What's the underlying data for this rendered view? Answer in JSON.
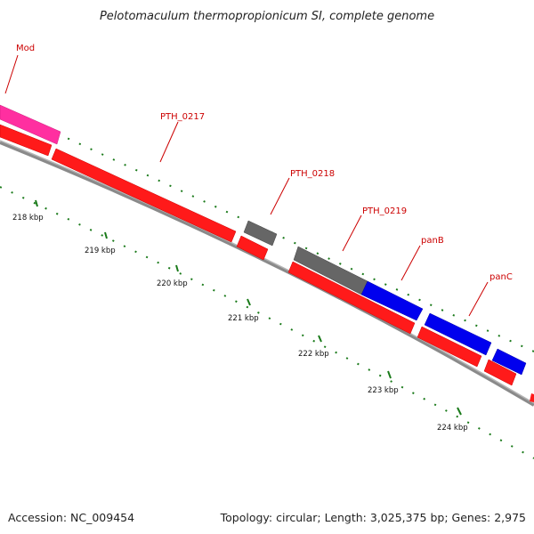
{
  "title": "Pelotomaculum thermopropionicum SI, complete genome",
  "footer": {
    "accession": "Accession: NC_009454",
    "summary": "Topology: circular; Length: 3,025,375 bp; Genes: 2,975"
  },
  "colors": {
    "forward_cds": "#ff1a1a",
    "reverse_cds": "#ff0000",
    "highlight_gene": "#ff2fa0",
    "hypothetical": "#666666",
    "pantothenate_genes": "#0000ee",
    "backbone": "#8a8a8a",
    "ticks": "#1a7a1a",
    "gene_label": "#cc0000"
  },
  "gene_labels": [
    {
      "id": "mod",
      "text": "Mod"
    },
    {
      "id": "pth0217",
      "text": "PTH_0217"
    },
    {
      "id": "pth0218",
      "text": "PTH_0218"
    },
    {
      "id": "pth0219",
      "text": "PTH_0219"
    },
    {
      "id": "panb",
      "text": "panB"
    },
    {
      "id": "panc",
      "text": "panC"
    }
  ],
  "kbp_ticks": [
    {
      "id": "218",
      "text": "218 kbp"
    },
    {
      "id": "219",
      "text": "219 kbp"
    },
    {
      "id": "220",
      "text": "220 kbp"
    },
    {
      "id": "221",
      "text": "221 kbp"
    },
    {
      "id": "222",
      "text": "222 kbp"
    },
    {
      "id": "223",
      "text": "223 kbp"
    },
    {
      "id": "224",
      "text": "224 kbp"
    }
  ]
}
